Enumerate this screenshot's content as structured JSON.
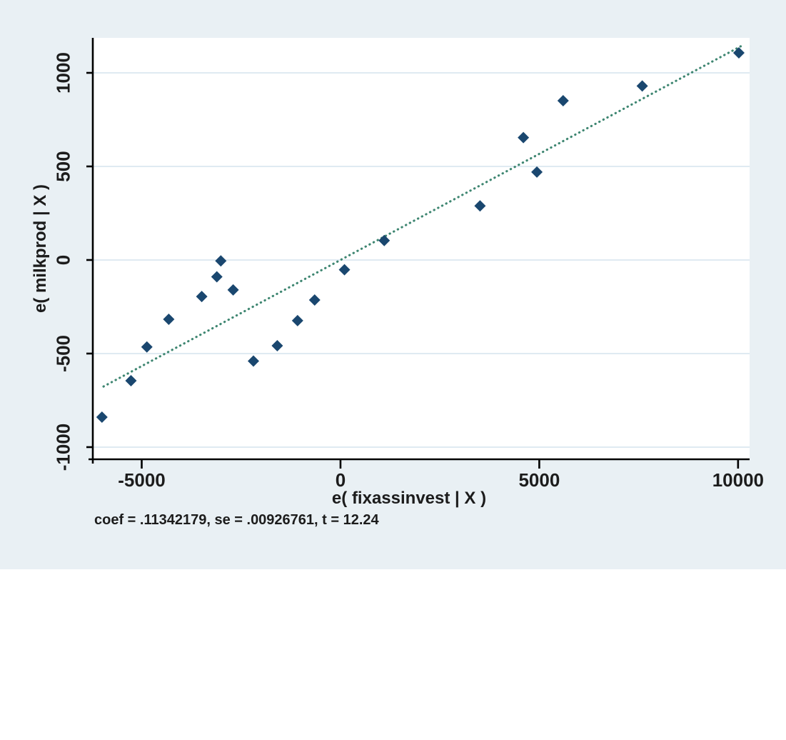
{
  "chart_data": {
    "type": "scatter",
    "title": "",
    "xlabel": "e( fixassinvest | X )",
    "ylabel": "e( milkprod | X )",
    "annotation": "coef = .11342179, se = .00926761, t = 12.24",
    "coef": ".11342179",
    "se": ".00926761",
    "t": "12.24",
    "xlim": [
      -6230,
      10290
    ],
    "ylim": [
      -1065,
      1187
    ],
    "x_tick_values": [
      -5000,
      0,
      5000,
      10000
    ],
    "x_tick_labels": [
      "-5000",
      "0",
      "5000",
      "10000"
    ],
    "y_tick_values": [
      -1000,
      -500,
      0,
      500,
      1000
    ],
    "y_tick_labels": [
      "-1000",
      "-500",
      "0",
      "500",
      "1000"
    ],
    "grid": "horizontal-gridlines-on",
    "legend": "none",
    "points": [
      [
        -6000,
        -840
      ],
      [
        -5270,
        -645
      ],
      [
        -4870,
        -465
      ],
      [
        -4320,
        -317
      ],
      [
        -3490,
        -195
      ],
      [
        -3110,
        -90
      ],
      [
        -3010,
        -5
      ],
      [
        -2700,
        -160
      ],
      [
        -2190,
        -540
      ],
      [
        -1590,
        -458
      ],
      [
        -1080,
        -324
      ],
      [
        -650,
        -214
      ],
      [
        100,
        -52
      ],
      [
        1100,
        104
      ],
      [
        3510,
        289
      ],
      [
        4600,
        654
      ],
      [
        4940,
        470
      ],
      [
        5600,
        851
      ],
      [
        7590,
        930
      ],
      [
        10020,
        1107
      ]
    ],
    "fit_line": {
      "slope": 0.11342179,
      "intercept": 0,
      "x_start": -5960,
      "x_end": 10110,
      "style": "dotted"
    },
    "colors": {
      "graph_background": "#e9f0f4",
      "plot_background": "#ffffff",
      "gridline": "#dfeaf2",
      "axis": "#000000",
      "text": "#1c1c1c",
      "marker": "#1a476f",
      "fit_line": "#3e8671"
    }
  }
}
